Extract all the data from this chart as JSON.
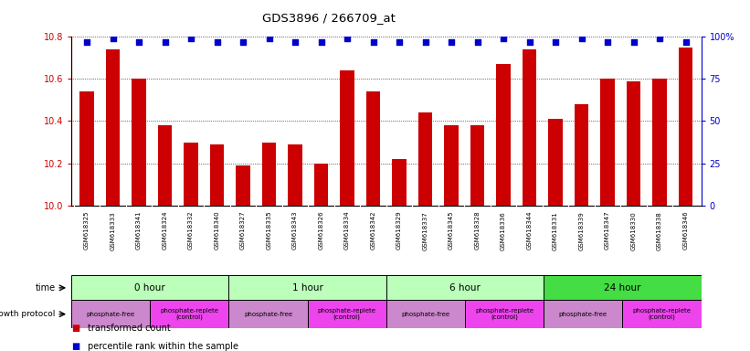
{
  "title": "GDS3896 / 266709_at",
  "samples": [
    "GSM618325",
    "GSM618333",
    "GSM618341",
    "GSM618324",
    "GSM618332",
    "GSM618340",
    "GSM618327",
    "GSM618335",
    "GSM618343",
    "GSM618326",
    "GSM618334",
    "GSM618342",
    "GSM618329",
    "GSM618337",
    "GSM618345",
    "GSM618328",
    "GSM618336",
    "GSM618344",
    "GSM618331",
    "GSM618339",
    "GSM618347",
    "GSM618330",
    "GSM618338",
    "GSM618346"
  ],
  "bar_values": [
    10.54,
    10.74,
    10.6,
    10.38,
    10.3,
    10.29,
    10.19,
    10.3,
    10.29,
    10.2,
    10.64,
    10.54,
    10.22,
    10.44,
    10.38,
    10.38,
    10.67,
    10.74,
    10.41,
    10.48,
    10.6,
    10.59,
    10.6,
    10.75
  ],
  "percentile_values": [
    97,
    99,
    97,
    97,
    99,
    97,
    97,
    99,
    97,
    97,
    99,
    97,
    97,
    97,
    97,
    97,
    99,
    97,
    97,
    99,
    97,
    97,
    99,
    97
  ],
  "ylim_left": [
    10.0,
    10.8
  ],
  "ylim_right": [
    0,
    100
  ],
  "yticks_left": [
    10.0,
    10.2,
    10.4,
    10.6,
    10.8
  ],
  "yticks_right": [
    0,
    25,
    50,
    75,
    100
  ],
  "bar_color": "#cc0000",
  "dot_color": "#0000cc",
  "time_groups": [
    {
      "label": "0 hour",
      "start": 0,
      "end": 6,
      "color": "#bbffbb"
    },
    {
      "label": "1 hour",
      "start": 6,
      "end": 12,
      "color": "#bbffbb"
    },
    {
      "label": "6 hour",
      "start": 12,
      "end": 18,
      "color": "#bbffbb"
    },
    {
      "label": "24 hour",
      "start": 18,
      "end": 24,
      "color": "#44dd44"
    }
  ],
  "growth_groups": [
    {
      "label": "phosphate-free",
      "start": 0,
      "end": 3,
      "color": "#cc88cc"
    },
    {
      "label": "phosphate-replete\n(control)",
      "start": 3,
      "end": 6,
      "color": "#ee44ee"
    },
    {
      "label": "phosphate-free",
      "start": 6,
      "end": 9,
      "color": "#cc88cc"
    },
    {
      "label": "phosphate-replete\n(control)",
      "start": 9,
      "end": 12,
      "color": "#ee44ee"
    },
    {
      "label": "phosphate-free",
      "start": 12,
      "end": 15,
      "color": "#cc88cc"
    },
    {
      "label": "phosphate-replete\n(control)",
      "start": 15,
      "end": 18,
      "color": "#ee44ee"
    },
    {
      "label": "phosphate-free",
      "start": 18,
      "end": 21,
      "color": "#cc88cc"
    },
    {
      "label": "phosphate-replete\n(control)",
      "start": 21,
      "end": 24,
      "color": "#ee44ee"
    }
  ],
  "legend_bar_color": "#cc0000",
  "legend_dot_color": "#0000cc",
  "bg_color": "#ffffff",
  "tick_label_color_left": "#cc0000",
  "tick_label_color_right": "#0000cc",
  "xtick_bg_color": "#dddddd"
}
